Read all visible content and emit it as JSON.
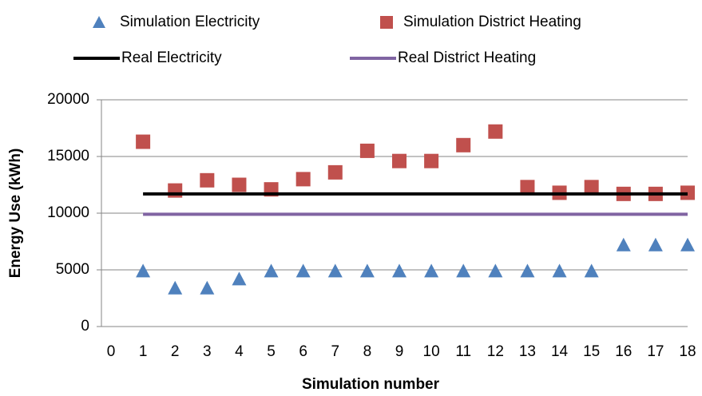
{
  "chart_data": {
    "type": "scatter",
    "x_label": "Simulation number",
    "y_label": "Energy Use (kWh)",
    "x": [
      1,
      2,
      3,
      4,
      5,
      6,
      7,
      8,
      9,
      10,
      11,
      12,
      13,
      14,
      15,
      16,
      17,
      18
    ],
    "series": [
      {
        "name": "Simulation Electricity",
        "color": "#4f81bd",
        "marker": "triangle",
        "values": [
          4900,
          3400,
          3400,
          4200,
          4900,
          4900,
          4900,
          4900,
          4900,
          4900,
          4900,
          4900,
          4900,
          4900,
          4900,
          7200,
          7200,
          7200
        ]
      },
      {
        "name": "Simulation District Heating",
        "color": "#c0504d",
        "marker": "square",
        "values": [
          16300,
          12000,
          12900,
          12500,
          12100,
          13000,
          13600,
          15500,
          14600,
          14600,
          16000,
          17200,
          12300,
          11800,
          12300,
          11700,
          11700,
          11800
        ]
      },
      {
        "name": "Real Electricity",
        "color": "#000000",
        "marker": "line",
        "x": [
          1,
          18
        ],
        "values": [
          11700,
          11700
        ]
      },
      {
        "name": "Real District Heating",
        "color": "#8064a2",
        "marker": "line",
        "x": [
          1,
          18
        ],
        "values": [
          9900,
          9900
        ]
      }
    ],
    "xlim": [
      0,
      18
    ],
    "xticks": [
      0,
      1,
      2,
      3,
      4,
      5,
      6,
      7,
      8,
      9,
      10,
      11,
      12,
      13,
      14,
      15,
      16,
      17,
      18
    ],
    "ylim": [
      0,
      20000
    ],
    "yticks": [
      0,
      5000,
      10000,
      15000,
      20000
    ],
    "grid": true,
    "legend": "top"
  }
}
